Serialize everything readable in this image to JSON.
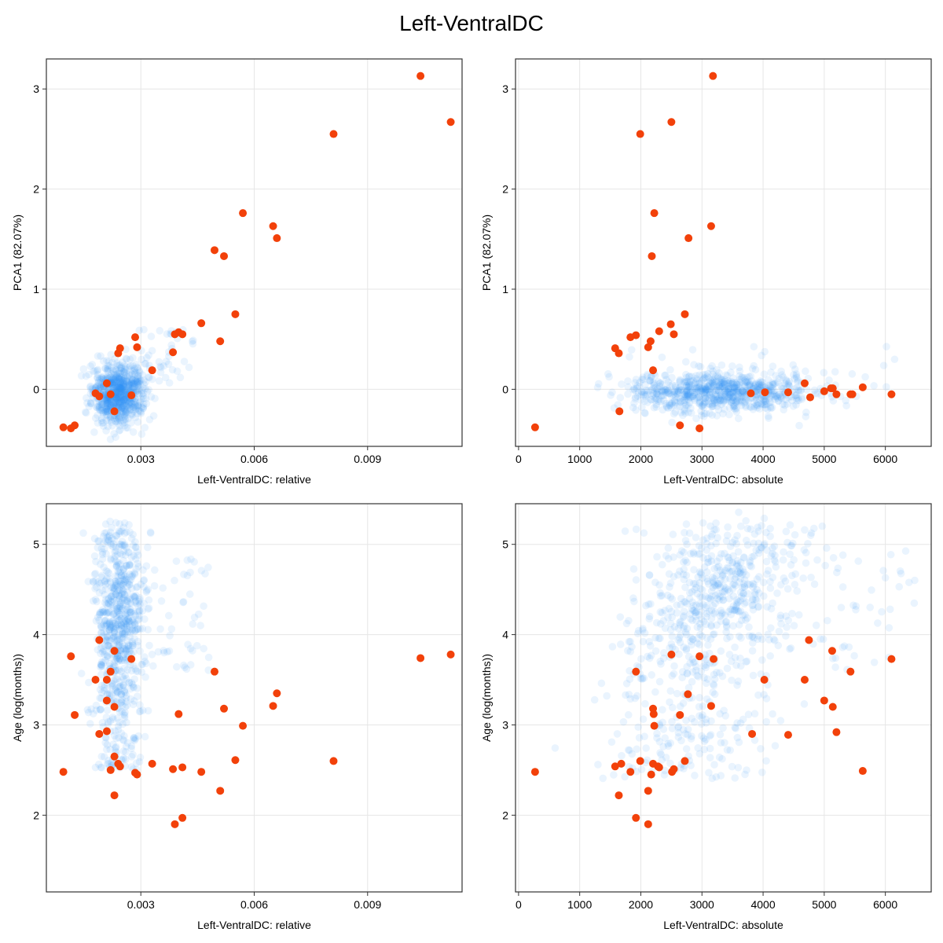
{
  "figure": {
    "title": "Left-VentralDC"
  },
  "colors": {
    "background_points": "#2f8ff5",
    "highlight_points": "#f2410a",
    "grid": "#e6e6e6",
    "frame": "#333333"
  },
  "chart_data": [
    {
      "type": "scatter",
      "xlabel": "Left-VentralDC: relative",
      "ylabel": "PCA1 (82.07%)",
      "xlim": [
        0.0005,
        0.0115
      ],
      "ylim": [
        -0.57,
        3.3
      ],
      "xticks": [
        0.003,
        0.006,
        0.009
      ],
      "xtick_labels": [
        "0.003",
        "0.006",
        "0.009"
      ],
      "yticks": [
        0,
        1,
        2,
        3
      ],
      "ytick_labels": [
        "0",
        "1",
        "2",
        "3"
      ],
      "grid": true,
      "background_cloud": {
        "description": "dense cloud of ~800 translucent blue points",
        "x_range": [
          0.0015,
          0.0037
        ],
        "y_center": -0.05,
        "y_spread": 0.15
      },
      "series": [
        {
          "role": "highlight",
          "x": [
            0.00095,
            0.00115,
            0.00125,
            0.0018,
            0.0019,
            0.0021,
            0.0022,
            0.0023,
            0.0024,
            0.00245,
            0.00275,
            0.00285,
            0.0029,
            0.0033,
            0.00385,
            0.0039,
            0.004,
            0.0041,
            0.0046,
            0.00495,
            0.0051,
            0.0052,
            0.0055,
            0.0057,
            0.0065,
            0.0066,
            0.0081,
            0.0104,
            0.0112
          ],
          "y": [
            -0.38,
            -0.39,
            -0.36,
            -0.04,
            -0.07,
            0.06,
            -0.05,
            -0.22,
            0.36,
            0.41,
            -0.06,
            0.52,
            0.42,
            0.19,
            0.37,
            0.55,
            0.57,
            0.55,
            0.66,
            1.39,
            0.48,
            1.33,
            0.75,
            1.76,
            1.63,
            1.51,
            2.55,
            3.13,
            2.67
          ]
        }
      ]
    },
    {
      "type": "scatter",
      "xlabel": "Left-VentralDC: absolute",
      "ylabel": "PCA1 (82.07%)",
      "xlim": [
        -50,
        6750
      ],
      "ylim": [
        -0.57,
        3.3
      ],
      "xticks": [
        0,
        1000,
        2000,
        3000,
        4000,
        5000,
        6000
      ],
      "xtick_labels": [
        "0",
        "1000",
        "2000",
        "3000",
        "4000",
        "5000",
        "6000"
      ],
      "yticks": [
        0,
        1,
        2,
        3
      ],
      "ytick_labels": [
        "0",
        "1",
        "2",
        "3"
      ],
      "grid": true,
      "background_cloud": {
        "description": "horizontal band of ~800 translucent blue points",
        "x_range": [
          1600,
          6500
        ],
        "y_center": -0.03,
        "y_spread": 0.1
      },
      "series": [
        {
          "role": "highlight",
          "x": [
            270,
            1580,
            1640,
            1650,
            1830,
            1920,
            1990,
            2120,
            2160,
            2180,
            2200,
            2220,
            2300,
            2490,
            2500,
            2540,
            2640,
            2720,
            2780,
            2960,
            3150,
            3180,
            3800,
            4030,
            4410,
            4680,
            4770,
            5000,
            5110,
            5140,
            5200,
            5430,
            5460,
            5630,
            6100
          ],
          "y": [
            -0.38,
            0.41,
            0.36,
            -0.22,
            0.52,
            0.54,
            2.55,
            0.42,
            0.48,
            1.33,
            0.19,
            1.76,
            0.58,
            0.65,
            2.67,
            0.55,
            -0.36,
            0.75,
            1.51,
            -0.39,
            1.63,
            3.13,
            -0.04,
            -0.03,
            -0.03,
            0.06,
            -0.08,
            -0.02,
            0.01,
            0.01,
            -0.05,
            -0.05,
            -0.05,
            0.02,
            -0.05
          ]
        }
      ]
    },
    {
      "type": "scatter",
      "xlabel": "Left-VentralDC: relative",
      "ylabel": "Age (log(months))",
      "xlim": [
        0.0005,
        0.0115
      ],
      "ylim": [
        1.15,
        5.45
      ],
      "xticks": [
        0.003,
        0.006,
        0.009
      ],
      "xtick_labels": [
        "0.003",
        "0.006",
        "0.009"
      ],
      "yticks": [
        2,
        3,
        4,
        5
      ],
      "ytick_labels": [
        "2",
        "3",
        "4",
        "5"
      ],
      "grid": true,
      "background_cloud": {
        "description": "vertical column of ~800 translucent blue points",
        "x_range": [
          0.0015,
          0.0035
        ],
        "y_range": [
          1.3,
          5.25
        ]
      },
      "series": [
        {
          "role": "highlight",
          "x": [
            0.00095,
            0.00115,
            0.00125,
            0.0018,
            0.0019,
            0.0019,
            0.0021,
            0.0021,
            0.0021,
            0.0022,
            0.0022,
            0.0023,
            0.0023,
            0.0023,
            0.0023,
            0.0024,
            0.00245,
            0.00275,
            0.00285,
            0.0029,
            0.0033,
            0.00385,
            0.0039,
            0.004,
            0.0041,
            0.0041,
            0.0046,
            0.00495,
            0.0051,
            0.0052,
            0.0055,
            0.0057,
            0.0065,
            0.0066,
            0.0081,
            0.0104,
            0.0112
          ],
          "y": [
            2.48,
            3.76,
            3.11,
            3.5,
            3.94,
            2.9,
            3.5,
            2.93,
            3.27,
            3.59,
            2.5,
            2.65,
            3.82,
            3.2,
            2.22,
            2.57,
            2.54,
            3.73,
            2.47,
            2.45,
            2.57,
            2.51,
            1.9,
            3.12,
            2.53,
            1.97,
            2.48,
            3.59,
            2.27,
            3.18,
            2.61,
            2.99,
            3.21,
            3.35,
            2.6,
            3.74,
            3.78
          ]
        }
      ]
    },
    {
      "type": "scatter",
      "xlabel": "Left-VentralDC: absolute",
      "ylabel": "Age (log(months))",
      "xlim": [
        -50,
        6750
      ],
      "ylim": [
        1.15,
        5.45
      ],
      "xticks": [
        0,
        1000,
        2000,
        3000,
        4000,
        5000,
        6000
      ],
      "xtick_labels": [
        "0",
        "1000",
        "2000",
        "3000",
        "4000",
        "5000",
        "6000"
      ],
      "yticks": [
        2,
        3,
        4,
        5
      ],
      "ytick_labels": [
        "2",
        "3",
        "4",
        "5"
      ],
      "grid": true,
      "background_cloud": {
        "description": "broad cloud of ~800 translucent blue points rising with x",
        "x_range": [
          1600,
          6500
        ],
        "y_range": [
          1.3,
          5.25
        ]
      },
      "series": [
        {
          "role": "highlight",
          "x": [
            270,
            1580,
            1640,
            1680,
            1830,
            1920,
            1920,
            1990,
            2120,
            2120,
            2170,
            2200,
            2200,
            2210,
            2220,
            2280,
            2300,
            2500,
            2510,
            2540,
            2640,
            2720,
            2770,
            2960,
            3150,
            3190,
            3820,
            4020,
            4410,
            4680,
            4750,
            5000,
            5130,
            5140,
            5200,
            5430,
            5630,
            6100
          ],
          "y": [
            2.48,
            2.54,
            2.22,
            2.57,
            2.48,
            3.59,
            1.97,
            2.6,
            2.27,
            1.9,
            2.45,
            3.18,
            2.57,
            3.12,
            2.99,
            2.54,
            2.53,
            3.78,
            2.48,
            2.51,
            3.11,
            2.6,
            3.34,
            3.76,
            3.21,
            3.73,
            2.9,
            3.5,
            2.89,
            3.5,
            3.94,
            3.27,
            3.82,
            3.2,
            2.92,
            3.59,
            2.49,
            3.73
          ]
        }
      ]
    }
  ]
}
